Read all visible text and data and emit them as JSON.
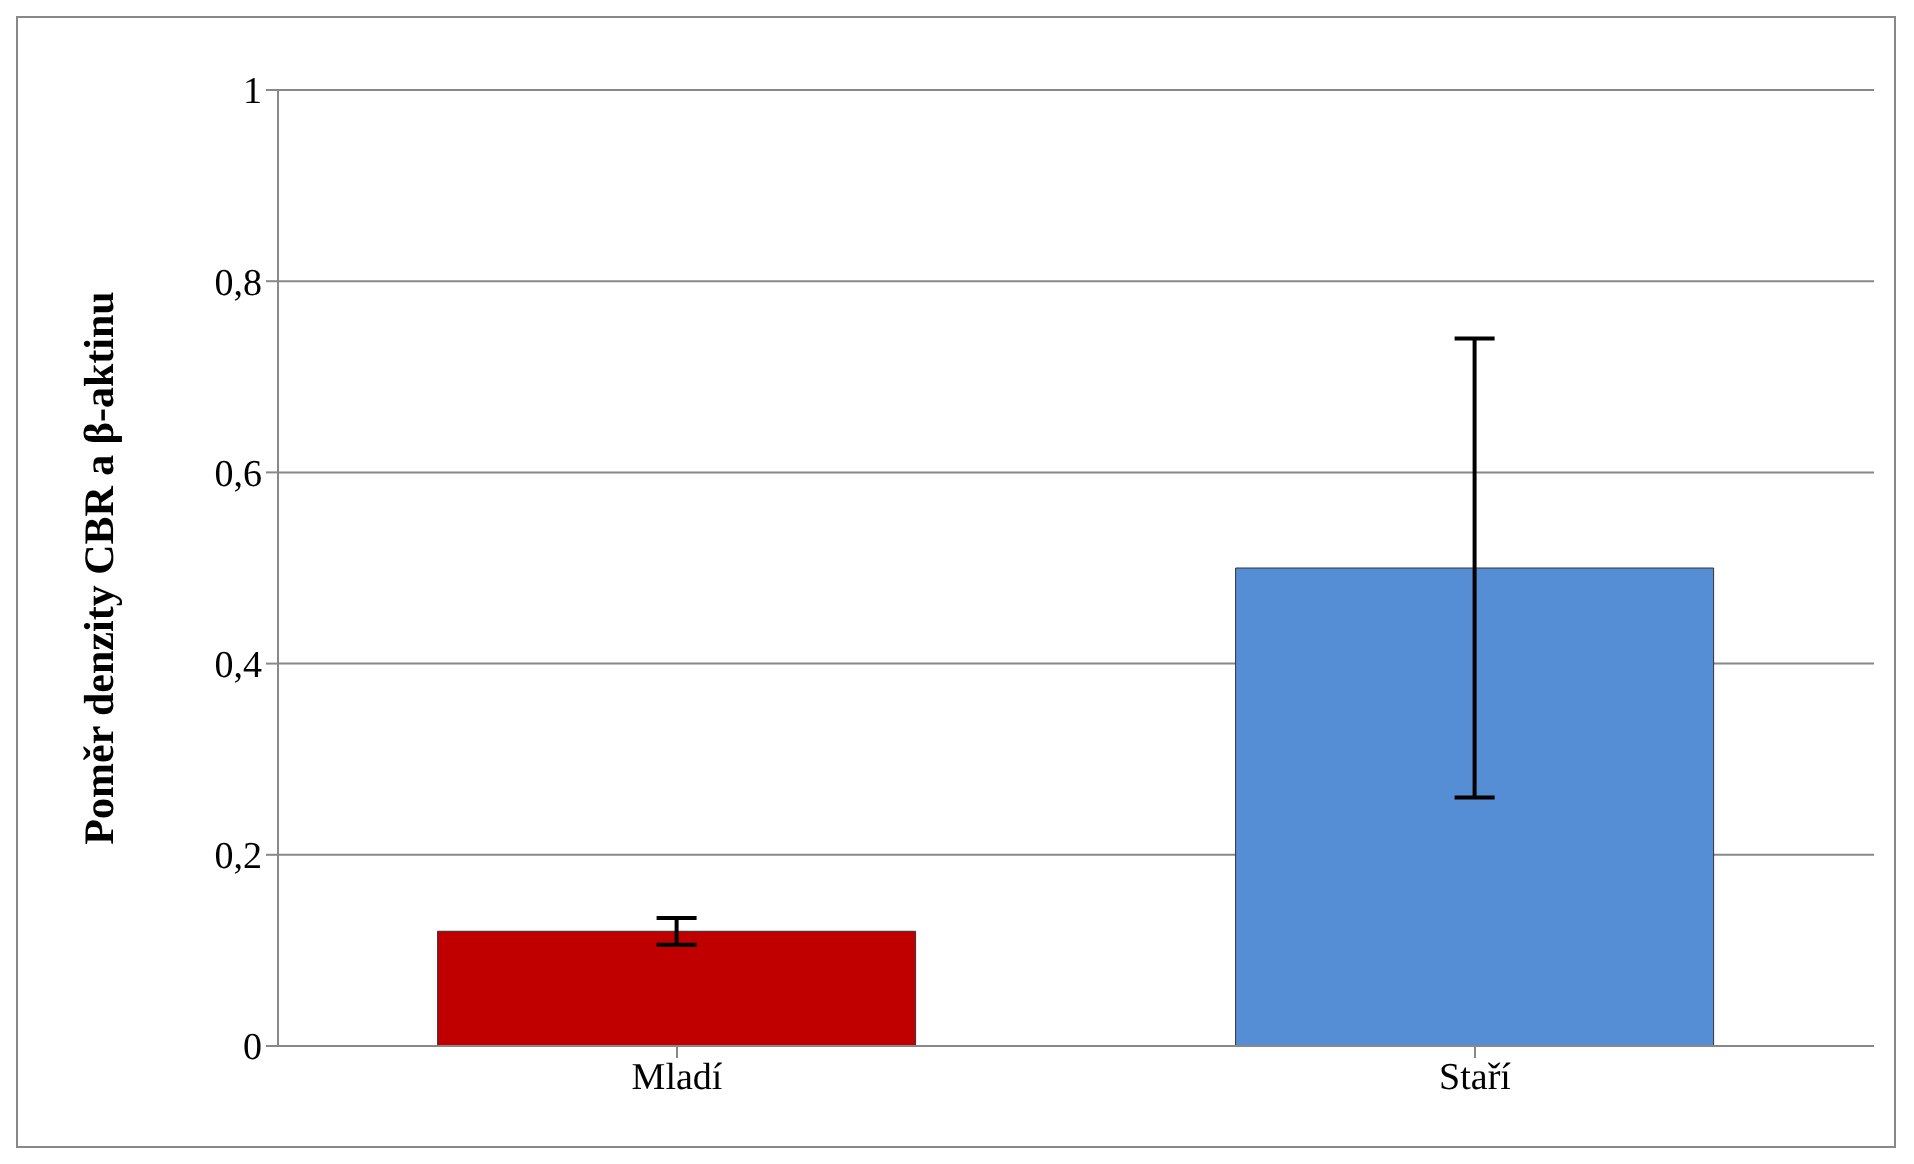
{
  "chart_data": {
    "type": "bar",
    "ylabel": "Poměr denzity CBR a β-aktinu",
    "categories": [
      "Mladí",
      "Staří"
    ],
    "values": [
      0.12,
      0.5
    ],
    "errors": [
      0.014,
      0.24
    ],
    "colors": [
      "#c00000",
      "#558ed5"
    ],
    "ylim": [
      0,
      1
    ],
    "yticks": [
      0,
      {
        "value": 0.2,
        "label": "0,2"
      },
      {
        "value": 0.4,
        "label": "0,4"
      },
      {
        "value": 0.6,
        "label": "0,6"
      },
      {
        "value": 0.8,
        "label": "0,8"
      },
      1
    ],
    "grid": "y",
    "legend": false
  }
}
